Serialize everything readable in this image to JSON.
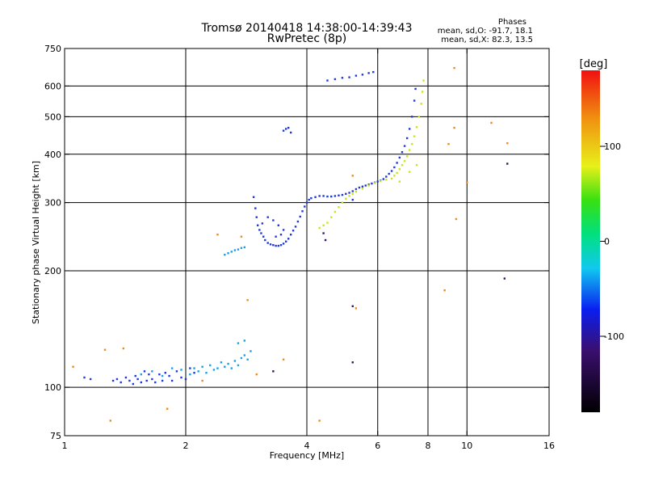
{
  "header": {
    "title_line1": "Tromsø 20140418 14:38:00-14:39:43",
    "title_line2": "RwPretec (8p)",
    "stats_title": "Phases",
    "stats_o": "mean, sd,O: -91.7, 18.1",
    "stats_x": "mean, sd,X:  82.3, 13.5"
  },
  "chart_data": {
    "type": "scatter",
    "xlabel": "Frequency [MHz]",
    "ylabel": "Stationary phase Virtual Height [km]",
    "x_scale": "log",
    "y_scale": "log",
    "xlim": [
      1,
      16
    ],
    "ylim": [
      75,
      750
    ],
    "x_ticks": [
      1,
      2,
      4,
      6,
      8,
      10,
      16
    ],
    "y_ticks": [
      75,
      100,
      200,
      300,
      400,
      500,
      600,
      750
    ],
    "x_grid": [
      2,
      4,
      6,
      8,
      10
    ],
    "y_grid": [
      100,
      200,
      300,
      400,
      500,
      600
    ],
    "colorbar": {
      "label": "[deg]",
      "range": [
        -180,
        180
      ],
      "ticks": [
        -100,
        0,
        100
      ]
    },
    "series": [
      {
        "phase": -105,
        "color": "#1f3ad8",
        "points": [
          [
            1.32,
            104
          ],
          [
            1.35,
            105
          ],
          [
            1.38,
            103
          ],
          [
            1.42,
            106
          ],
          [
            1.45,
            104
          ],
          [
            1.48,
            102
          ],
          [
            1.5,
            107
          ],
          [
            1.52,
            105
          ],
          [
            1.55,
            103
          ],
          [
            1.58,
            110
          ],
          [
            1.6,
            104
          ],
          [
            1.62,
            108
          ],
          [
            1.65,
            105
          ],
          [
            1.68,
            103
          ],
          [
            1.72,
            108
          ],
          [
            1.75,
            104
          ],
          [
            1.78,
            109
          ],
          [
            1.82,
            107
          ],
          [
            1.85,
            104
          ],
          [
            1.9,
            110
          ],
          [
            1.95,
            106
          ],
          [
            2.0,
            105
          ],
          [
            2.05,
            112
          ],
          [
            2.1,
            109
          ],
          [
            1.12,
            106
          ],
          [
            1.16,
            105
          ],
          [
            2.95,
            310
          ],
          [
            2.98,
            290
          ],
          [
            3.0,
            275
          ],
          [
            3.02,
            262
          ],
          [
            3.05,
            255
          ],
          [
            3.08,
            250
          ],
          [
            3.12,
            245
          ],
          [
            3.15,
            240
          ],
          [
            3.2,
            236
          ],
          [
            3.25,
            234
          ],
          [
            3.3,
            233
          ],
          [
            3.35,
            232
          ],
          [
            3.4,
            232
          ],
          [
            3.45,
            233
          ],
          [
            3.5,
            235
          ],
          [
            3.55,
            238
          ],
          [
            3.6,
            242
          ],
          [
            3.65,
            248
          ],
          [
            3.7,
            254
          ],
          [
            3.75,
            260
          ],
          [
            3.8,
            268
          ],
          [
            3.85,
            276
          ],
          [
            3.9,
            285
          ],
          [
            3.95,
            293
          ],
          [
            4.0,
            300
          ],
          [
            4.05,
            305
          ],
          [
            4.1,
            308
          ],
          [
            4.2,
            310
          ],
          [
            4.3,
            312
          ],
          [
            4.4,
            312
          ],
          [
            4.5,
            311
          ],
          [
            4.6,
            311
          ],
          [
            4.7,
            312
          ],
          [
            4.8,
            313
          ],
          [
            4.9,
            314
          ],
          [
            5.0,
            316
          ],
          [
            5.1,
            318
          ],
          [
            5.2,
            321
          ],
          [
            5.3,
            325
          ],
          [
            5.4,
            328
          ],
          [
            5.5,
            330
          ],
          [
            5.6,
            332
          ],
          [
            5.7,
            334
          ],
          [
            5.8,
            336
          ],
          [
            5.9,
            338
          ],
          [
            6.0,
            340
          ],
          [
            6.1,
            342
          ],
          [
            6.2,
            345
          ],
          [
            6.3,
            350
          ],
          [
            6.4,
            356
          ],
          [
            6.5,
            362
          ],
          [
            6.6,
            370
          ],
          [
            6.7,
            380
          ],
          [
            6.8,
            392
          ],
          [
            6.9,
            405
          ],
          [
            7.0,
            420
          ],
          [
            7.1,
            440
          ],
          [
            7.2,
            465
          ],
          [
            7.3,
            500
          ],
          [
            7.4,
            550
          ],
          [
            7.45,
            590
          ],
          [
            3.1,
            265
          ],
          [
            3.2,
            275
          ],
          [
            3.3,
            270
          ],
          [
            3.4,
            262
          ],
          [
            3.5,
            255
          ],
          [
            3.35,
            245
          ],
          [
            3.45,
            248
          ],
          [
            4.5,
            620
          ],
          [
            4.7,
            625
          ],
          [
            4.9,
            630
          ],
          [
            5.1,
            632
          ],
          [
            5.3,
            638
          ],
          [
            5.5,
            642
          ],
          [
            5.7,
            648
          ],
          [
            5.85,
            652
          ],
          [
            3.5,
            460
          ],
          [
            3.55,
            465
          ],
          [
            3.6,
            468
          ],
          [
            3.65,
            455
          ],
          [
            5.2,
            305
          ]
        ]
      },
      {
        "phase": -75,
        "color": "#1aa0e6",
        "points": [
          [
            1.55,
            108
          ],
          [
            1.65,
            110
          ],
          [
            1.75,
            107
          ],
          [
            1.85,
            112
          ],
          [
            1.95,
            111
          ],
          [
            2.05,
            108
          ],
          [
            2.1,
            112
          ],
          [
            2.15,
            110
          ],
          [
            2.2,
            113
          ],
          [
            2.25,
            109
          ],
          [
            2.3,
            114
          ],
          [
            2.35,
            111
          ],
          [
            2.4,
            112
          ],
          [
            2.45,
            116
          ],
          [
            2.5,
            113
          ],
          [
            2.55,
            115
          ],
          [
            2.6,
            112
          ],
          [
            2.65,
            117
          ],
          [
            2.7,
            114
          ],
          [
            2.75,
            119
          ],
          [
            2.8,
            121
          ],
          [
            2.85,
            118
          ],
          [
            2.9,
            124
          ],
          [
            2.7,
            130
          ],
          [
            2.8,
            132
          ],
          [
            2.5,
            220
          ],
          [
            2.55,
            222
          ],
          [
            2.6,
            224
          ],
          [
            2.65,
            226
          ],
          [
            2.7,
            227
          ],
          [
            2.75,
            229
          ],
          [
            2.8,
            230
          ]
        ]
      },
      {
        "phase": 95,
        "color": "#c8e61e",
        "points": [
          [
            4.3,
            258
          ],
          [
            4.4,
            262
          ],
          [
            4.5,
            266
          ],
          [
            4.6,
            275
          ],
          [
            4.7,
            284
          ],
          [
            4.8,
            292
          ],
          [
            4.9,
            300
          ],
          [
            5.0,
            307
          ],
          [
            5.1,
            312
          ],
          [
            5.2,
            316
          ],
          [
            5.3,
            320
          ],
          [
            5.5,
            326
          ],
          [
            5.7,
            332
          ],
          [
            5.9,
            337
          ],
          [
            6.1,
            341
          ],
          [
            6.3,
            344
          ],
          [
            6.5,
            346
          ],
          [
            6.6,
            352
          ],
          [
            6.7,
            358
          ],
          [
            6.8,
            366
          ],
          [
            6.9,
            375
          ],
          [
            7.0,
            384
          ],
          [
            7.1,
            395
          ],
          [
            7.2,
            410
          ],
          [
            7.3,
            425
          ],
          [
            7.4,
            445
          ],
          [
            7.5,
            470
          ],
          [
            7.6,
            500
          ],
          [
            7.7,
            540
          ],
          [
            7.75,
            580
          ],
          [
            7.8,
            620
          ],
          [
            6.8,
            340
          ],
          [
            7.2,
            360
          ],
          [
            7.5,
            375
          ]
        ]
      },
      {
        "phase": 140,
        "color": "#f08a1e",
        "points": [
          [
            9.3,
            668
          ],
          [
            11.5,
            482
          ],
          [
            12.6,
            427
          ],
          [
            9.0,
            425
          ],
          [
            9.3,
            468
          ],
          [
            5.2,
            352
          ],
          [
            9.4,
            272
          ],
          [
            10.0,
            338
          ],
          [
            2.85,
            168
          ],
          [
            3.5,
            118
          ],
          [
            3.0,
            108
          ],
          [
            2.2,
            104
          ],
          [
            1.05,
            113
          ],
          [
            1.26,
            125
          ],
          [
            1.4,
            126
          ],
          [
            1.8,
            88
          ],
          [
            1.3,
            82
          ],
          [
            2.4,
            248
          ],
          [
            2.75,
            245
          ],
          [
            8.8,
            178
          ],
          [
            4.3,
            82
          ],
          [
            5.3,
            160
          ]
        ]
      },
      {
        "phase": -150,
        "color": "#3a0f6e",
        "points": [
          [
            12.4,
            191
          ],
          [
            12.6,
            378
          ],
          [
            5.2,
            162
          ],
          [
            5.2,
            116
          ],
          [
            3.3,
            110
          ],
          [
            4.4,
            250
          ],
          [
            4.45,
            240
          ]
        ]
      }
    ]
  }
}
